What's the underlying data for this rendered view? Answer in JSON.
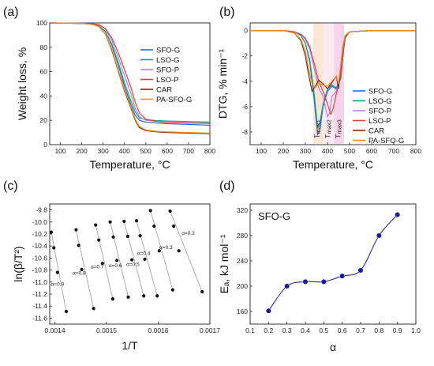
{
  "chart_data": [
    {
      "panel_label": "(a)",
      "type": "line",
      "xlabel": "Temperature, °C",
      "ylabel": "Weight loss, %",
      "xlim": [
        50,
        800
      ],
      "ylim": [
        0,
        100
      ],
      "xticks": [
        100,
        200,
        300,
        400,
        500,
        600,
        700,
        800
      ],
      "yticks": [
        0,
        20,
        40,
        60,
        80,
        100
      ],
      "legend_position": "center-right",
      "series": [
        {
          "name": "SFO-G",
          "color": "#1f6fd1",
          "x": [
            60,
            200,
            250,
            280,
            310,
            340,
            370,
            400,
            430,
            450,
            470,
            500,
            550,
            600,
            700,
            800
          ],
          "y": [
            100,
            99.6,
            99,
            97.5,
            93,
            82,
            66,
            48,
            33,
            24,
            20,
            18.5,
            17.7,
            17.2,
            16.6,
            16
          ]
        },
        {
          "name": "LSO-G",
          "color": "#15a085",
          "x": [
            60,
            200,
            250,
            280,
            310,
            340,
            370,
            400,
            430,
            450,
            470,
            500,
            550,
            600,
            700,
            800
          ],
          "y": [
            100,
            99.6,
            99,
            97.5,
            93,
            83,
            68,
            51,
            36,
            27,
            22,
            20.5,
            19.8,
            19.4,
            19,
            18.5
          ]
        },
        {
          "name": "SFO-P",
          "color": "#b77fe0",
          "x": [
            60,
            200,
            250,
            280,
            310,
            340,
            370,
            400,
            430,
            450,
            470,
            500,
            550,
            600,
            700,
            800
          ],
          "y": [
            100,
            99.7,
            99.3,
            98.5,
            95,
            86,
            72,
            57,
            42,
            30,
            23,
            20,
            19,
            18.5,
            18,
            17.5
          ]
        },
        {
          "name": "LSO-P",
          "color": "#e04343",
          "x": [
            60,
            200,
            250,
            280,
            310,
            340,
            370,
            400,
            430,
            450,
            470,
            500,
            550,
            600,
            700,
            800
          ],
          "y": [
            100,
            99.7,
            99.3,
            98.6,
            95.5,
            88,
            76,
            62,
            47,
            35,
            26,
            21,
            19,
            18.3,
            17.8,
            17.5
          ]
        },
        {
          "name": "CAR",
          "color": "#7a2b10",
          "x": [
            60,
            200,
            250,
            280,
            310,
            340,
            370,
            400,
            430,
            450,
            470,
            500,
            550,
            600,
            700,
            800
          ],
          "y": [
            100,
            99.6,
            98.8,
            97,
            91,
            78,
            61,
            44,
            30,
            20,
            14,
            11.5,
            10.5,
            10,
            9.5,
            9
          ]
        },
        {
          "name": "PA-SFO-G",
          "color": "#f28c1a",
          "x": [
            60,
            200,
            250,
            280,
            310,
            340,
            370,
            400,
            430,
            450,
            470,
            500,
            550,
            600,
            700,
            800
          ],
          "y": [
            100,
            99.6,
            98.8,
            97,
            91,
            79,
            62,
            45,
            31,
            21,
            15,
            12,
            11,
            10.5,
            10,
            9.5
          ]
        }
      ]
    },
    {
      "panel_label": "(b)",
      "type": "line",
      "xlabel": "Temperature, °C",
      "ylabel": "DTG, % min⁻¹",
      "xlim": [
        50,
        800
      ],
      "ylim": [
        -9,
        0.6
      ],
      "xticks": [
        100,
        200,
        300,
        400,
        500,
        600,
        700,
        800
      ],
      "yticks": [
        0,
        -2,
        -4,
        -6,
        -8
      ],
      "legend_position": "bottom-right",
      "shaded_bands": [
        {
          "label": "T",
          "sub": "max1",
          "x0": 335,
          "x1": 380,
          "color": "#fde0cf"
        },
        {
          "label": "T",
          "sub": "max2",
          "x0": 380,
          "x1": 430,
          "color": "#fde6ee"
        },
        {
          "label": "T",
          "sub": "max3",
          "x0": 430,
          "x1": 475,
          "color": "#f7cde9"
        }
      ],
      "series": [
        {
          "name": "SFO-G",
          "color": "#1f6fd1",
          "x": [
            50,
            200,
            250,
            280,
            300,
            320,
            340,
            355,
            365,
            380,
            400,
            420,
            440,
            460,
            470,
            480,
            500,
            600,
            700,
            800
          ],
          "y": [
            0,
            0,
            -0.1,
            -0.4,
            -1,
            -2.5,
            -5.5,
            -8.2,
            -7.9,
            -6,
            -4.8,
            -4.4,
            -4.6,
            -3.8,
            -2,
            -0.6,
            -0.1,
            0,
            0,
            0
          ]
        },
        {
          "name": "LSO-G",
          "color": "#15a085",
          "x": [
            50,
            200,
            250,
            280,
            300,
            320,
            340,
            355,
            365,
            380,
            400,
            420,
            440,
            460,
            470,
            480,
            500,
            600,
            700,
            800
          ],
          "y": [
            0,
            0,
            -0.1,
            -0.4,
            -1,
            -2.3,
            -5,
            -7.6,
            -7.3,
            -5.8,
            -4.6,
            -4.3,
            -4.5,
            -3.8,
            -2,
            -0.6,
            -0.1,
            0,
            0,
            0
          ]
        },
        {
          "name": "SFO-P",
          "color": "#b77fe0",
          "x": [
            50,
            200,
            250,
            280,
            300,
            320,
            340,
            360,
            380,
            400,
            410,
            420,
            440,
            460,
            470,
            480,
            500,
            600,
            700,
            800
          ],
          "y": [
            0,
            0,
            -0.1,
            -0.3,
            -0.7,
            -1.5,
            -3,
            -4.5,
            -5.2,
            -6.8,
            -6.5,
            -5.2,
            -4.8,
            -3.5,
            -1.8,
            -0.5,
            -0.1,
            0,
            0,
            0
          ]
        },
        {
          "name": "LSO-P",
          "color": "#e04343",
          "x": [
            50,
            200,
            250,
            280,
            300,
            320,
            340,
            360,
            380,
            400,
            415,
            425,
            440,
            460,
            470,
            480,
            500,
            600,
            700,
            800
          ],
          "y": [
            0,
            0,
            -0.1,
            -0.3,
            -0.6,
            -1.3,
            -2.6,
            -4,
            -4.8,
            -5.8,
            -6.6,
            -6.2,
            -5,
            -3.5,
            -1.8,
            -0.5,
            -0.1,
            0,
            0,
            0
          ]
        },
        {
          "name": "CAR",
          "color": "#7a2b10",
          "x": [
            50,
            200,
            250,
            280,
            300,
            315,
            330,
            345,
            360,
            380,
            400,
            420,
            440,
            450,
            460,
            470,
            480,
            500,
            600,
            700,
            800
          ],
          "y": [
            0,
            0,
            -0.2,
            -0.8,
            -2,
            -3.5,
            -4.8,
            -4.4,
            -3.9,
            -4.2,
            -4.6,
            -4.1,
            -3.6,
            -4.6,
            -2.8,
            -1.2,
            -0.4,
            -0.1,
            0,
            0,
            0
          ]
        },
        {
          "name": "PA-SFO-G",
          "color": "#f28c1a",
          "x": [
            50,
            200,
            250,
            280,
            300,
            315,
            330,
            345,
            360,
            380,
            400,
            420,
            440,
            450,
            460,
            470,
            480,
            500,
            600,
            700,
            800
          ],
          "y": [
            0,
            0,
            -0.2,
            -0.7,
            -1.6,
            -3,
            -4.2,
            -4.5,
            -4.1,
            -4.3,
            -4.4,
            -4,
            -3.6,
            -4.2,
            -2.7,
            -1.2,
            -0.4,
            -0.1,
            0,
            0,
            0
          ]
        }
      ]
    },
    {
      "panel_label": "(c)",
      "type": "scatter",
      "xlabel": "1/T",
      "ylabel": "ln(β/T²)",
      "xlim": [
        0.00139,
        0.0017
      ],
      "ylim": [
        -11.7,
        -9.7
      ],
      "xticks": [
        "0.0014",
        "0.0015",
        "0.0016",
        "0.0017"
      ],
      "yticks": [
        "-9.8",
        "-10.0",
        "-10.2",
        "-10.4",
        "-10.6",
        "-10.8",
        "-11.0",
        "-11.2",
        "-11.4",
        "-11.6"
      ],
      "series": [
        {
          "name": "α=0.9",
          "label_at": [
            0.001405,
            -11.06
          ],
          "points": [
            [
              0.001393,
              -10.17
            ],
            [
              0.001398,
              -10.43
            ],
            [
              0.001405,
              -10.84
            ],
            [
              0.001422,
              -11.49
            ]
          ]
        },
        {
          "name": "α=0.8",
          "label_at": [
            0.001447,
            -10.88
          ],
          "points": [
            [
              0.001441,
              -10.13
            ],
            [
              0.001446,
              -10.39
            ],
            [
              0.001452,
              -10.79
            ],
            [
              0.001475,
              -11.44
            ]
          ]
        },
        {
          "name": "α=0.7",
          "label_at": [
            0.001482,
            -10.77
          ],
          "points": [
            [
              0.001479,
              -10.05
            ],
            [
              0.001485,
              -10.3
            ],
            [
              0.001492,
              -10.69
            ],
            [
              0.001512,
              -11.28
            ]
          ]
        },
        {
          "name": "α=0.6",
          "label_at": [
            0.001517,
            -10.75
          ],
          "points": [
            [
              0.001507,
              -10.0
            ],
            [
              0.001513,
              -10.25
            ],
            [
              0.00152,
              -10.64
            ],
            [
              0.001542,
              -11.25
            ]
          ]
        },
        {
          "name": "α=0.5",
          "label_at": [
            0.001551,
            -10.73
          ],
          "points": [
            [
              0.001534,
              -9.99
            ],
            [
              0.001541,
              -10.24
            ],
            [
              0.001549,
              -10.63
            ],
            [
              0.001572,
              -11.23
            ]
          ]
        },
        {
          "name": "α=0.4",
          "label_at": [
            0.001572,
            -10.55
          ],
          "points": [
            [
              0.001558,
              -9.98
            ],
            [
              0.001565,
              -10.23
            ],
            [
              0.001574,
              -10.62
            ],
            [
              0.001598,
              -11.23
            ]
          ]
        },
        {
          "name": "α=0.3",
          "label_at": [
            0.001615,
            -10.45
          ],
          "points": [
            [
              0.001585,
              -9.81
            ],
            [
              0.001592,
              -10.07
            ],
            [
              0.001602,
              -10.48
            ],
            [
              0.001628,
              -11.13
            ]
          ]
        },
        {
          "name": "α=0.2",
          "label_at": [
            0.001658,
            -10.21
          ],
          "points": [
            [
              0.001623,
              -9.82
            ],
            [
              0.00163,
              -10.07
            ],
            [
              0.00164,
              -10.48
            ],
            [
              0.001685,
              -11.16
            ]
          ]
        }
      ]
    },
    {
      "panel_label": "(d)",
      "type": "line",
      "annotation": "SFO-G",
      "xlabel": "α",
      "ylabel": "Eₐ, kJ mol⁻¹",
      "xlim": [
        0.1,
        1.0
      ],
      "ylim": [
        140,
        330
      ],
      "xticks": [
        "0.1",
        "0.2",
        "0.3",
        "0.4",
        "0.5",
        "0.6",
        "0.7",
        "0.8",
        "0.9",
        "1.0"
      ],
      "yticks": [
        "160",
        "200",
        "240",
        "280",
        "320"
      ],
      "x": [
        0.2,
        0.3,
        0.4,
        0.5,
        0.6,
        0.7,
        0.8,
        0.9
      ],
      "values": [
        161,
        200,
        207,
        207,
        216,
        225,
        280,
        313
      ],
      "marker_color": "#1a1a9e",
      "line_color": "#1a2b9e"
    }
  ]
}
